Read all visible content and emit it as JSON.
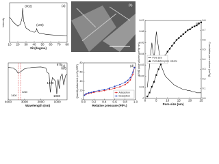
{
  "chart_data": [
    {
      "type": "line",
      "panel_label": "(a)",
      "y_label": "Intensity",
      "x_label": "2θ (degree)",
      "x": [
        10,
        15,
        20,
        23,
        25,
        26,
        27,
        30,
        35,
        40,
        42,
        43,
        44,
        46,
        50,
        55,
        60,
        65,
        70,
        75,
        80
      ],
      "xlim": [
        10,
        80
      ],
      "xticks": [
        10,
        20,
        30,
        40,
        50,
        60,
        70,
        80
      ],
      "ylim": [
        0,
        110
      ],
      "series": [
        {
          "color": "#111111",
          "values": [
            70,
            55,
            45,
            50,
            65,
            95,
            60,
            40,
            32,
            28,
            30,
            38,
            30,
            26,
            24,
            22,
            21,
            20,
            20,
            19,
            18
          ]
        }
      ],
      "annotations": [
        {
          "text": "(002)",
          "x": 33,
          "y": 100
        },
        {
          "text": "(100)",
          "x": 47,
          "y": 48
        }
      ]
    },
    {
      "type": "image",
      "panel_label": "(b)"
    },
    {
      "type": "line",
      "panel_label": "(c)",
      "x_label": "Wavelength (nm)",
      "x": [
        4000,
        3700,
        3500,
        3400,
        3300,
        3240,
        3000,
        2500,
        2000,
        1700,
        1630,
        1500,
        1430,
        1300,
        1100,
        1030,
        950,
        875,
        800,
        700,
        605,
        500,
        400
      ],
      "xlim": [
        4000,
        400
      ],
      "xticks": [
        4000,
        3000,
        2000,
        1000
      ],
      "ylim": [
        0,
        100
      ],
      "series": [
        {
          "color": "#111111",
          "values": [
            88,
            86,
            80,
            72,
            74,
            76,
            84,
            88,
            89,
            86,
            75,
            70,
            20,
            60,
            50,
            15,
            55,
            30,
            62,
            70,
            40,
            65,
            70
          ]
        }
      ],
      "reference_lines": [
        {
          "x": 3400,
          "label": "3400"
        },
        {
          "x": 3240,
          "label": "3240"
        }
      ],
      "annotations": [
        {
          "text": "1430",
          "x": 1430,
          "y": 45
        },
        {
          "text": "1030",
          "x": 1030,
          "y": 10
        },
        {
          "text": "875",
          "x": 875,
          "y": 95
        },
        {
          "text": "605",
          "x": 605,
          "y": 85
        }
      ]
    },
    {
      "type": "line",
      "panel_label": "(d)",
      "x_label": "Relative pressure (P/P₀)",
      "y_label": "Quantity Adsorbed (cm³/g STP)",
      "x": [
        0.02,
        0.05,
        0.1,
        0.15,
        0.2,
        0.3,
        0.4,
        0.5,
        0.6,
        0.7,
        0.8,
        0.85,
        0.9,
        0.95,
        0.98
      ],
      "xlim": [
        0,
        1
      ],
      "xticks": [
        {
          "value": 0,
          "label": "0.0"
        },
        0.2,
        0.4,
        0.6,
        0.8,
        {
          "value": 1,
          "label": "1.0"
        }
      ],
      "ylim": [
        0,
        80
      ],
      "yticks": [
        0,
        20,
        40,
        60,
        80
      ],
      "legend": "bottom-right",
      "series": [
        {
          "name": "Adsorption",
          "color": "#d62728",
          "marker": "circle",
          "values": [
            10,
            12,
            14,
            15,
            16,
            18,
            20,
            22,
            25,
            28,
            33,
            37,
            43,
            55,
            70
          ]
        },
        {
          "name": "Desorption",
          "color": "#1f3fbf",
          "marker": "circle",
          "values": [
            10,
            13,
            15,
            16,
            18,
            20,
            22,
            25,
            29,
            33,
            38,
            42,
            48,
            60,
            70
          ]
        }
      ]
    },
    {
      "type": "line",
      "panel_label": "(e)",
      "x_label": "Pore size (nm)",
      "y_label": "dV/dD pore volume (cm³/g·nm)",
      "y2_label": "Cumulative pore volume (cm³/g)",
      "x": [
        1,
        2,
        3,
        4,
        5,
        6,
        7,
        8,
        9,
        10,
        11,
        12,
        13,
        14,
        15,
        16,
        17,
        18,
        19,
        20,
        21,
        22,
        23,
        24,
        25
      ],
      "xlim": [
        0,
        25
      ],
      "xticks": [
        0,
        5,
        10,
        15,
        20,
        25
      ],
      "ylim": [
        0,
        0.07
      ],
      "yticks": [
        0,
        0.01,
        0.02,
        0.03,
        0.04,
        0.05,
        0.06,
        0.07
      ],
      "y2lim": [
        0,
        0.8
      ],
      "y2ticks": [
        {
          "value": 0,
          "label": "0.0"
        },
        0.1,
        0.2,
        0.3,
        0.4,
        0.5,
        0.6,
        0.7,
        0.8
      ],
      "legend": "center-left",
      "series": [
        {
          "name": "Pore size",
          "color": "#111111",
          "values": [
            0.01,
            0.03,
            0.05,
            0.035,
            0.06,
            0.045,
            0.03,
            0.025,
            0.02,
            0.018,
            0.016,
            0.014,
            0.012,
            0.011,
            0.01,
            0.009,
            0.008,
            0.008,
            0.007,
            0.007,
            0.006,
            0.006,
            0.005,
            0.005,
            0.005
          ]
        },
        {
          "name": "Cumulative pore volume",
          "color": "#111111",
          "marker": "square",
          "axis": "y2",
          "values": [
            0.02,
            0.06,
            0.12,
            0.17,
            0.24,
            0.3,
            0.35,
            0.4,
            0.44,
            0.48,
            0.51,
            0.54,
            0.57,
            0.6,
            0.62,
            0.64,
            0.66,
            0.68,
            0.7,
            0.71,
            0.73,
            0.74,
            0.75,
            0.77,
            0.78
          ]
        }
      ]
    }
  ]
}
